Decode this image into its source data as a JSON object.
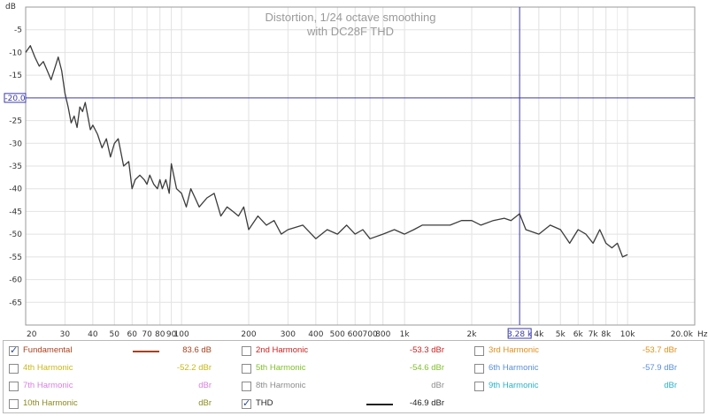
{
  "chart_data": {
    "type": "line",
    "title": "Distortion, 1/24 octave smoothing",
    "subtitle": "with DC28F THD",
    "ylabel": "dB",
    "xunit": "Hz",
    "xscale": "log",
    "xlim": [
      20,
      20000
    ],
    "ylim": [
      -70,
      0
    ],
    "grid": true,
    "x_ticks": [
      {
        "v": 20,
        "label": "20"
      },
      {
        "v": 30,
        "label": "30"
      },
      {
        "v": 40,
        "label": "40"
      },
      {
        "v": 50,
        "label": "50"
      },
      {
        "v": 60,
        "label": "60"
      },
      {
        "v": 70,
        "label": "70"
      },
      {
        "v": 80,
        "label": "80"
      },
      {
        "v": 90,
        "label": "90"
      },
      {
        "v": 100,
        "label": "100"
      },
      {
        "v": 200,
        "label": "200"
      },
      {
        "v": 300,
        "label": "300"
      },
      {
        "v": 400,
        "label": "400"
      },
      {
        "v": 500,
        "label": "500"
      },
      {
        "v": 600,
        "label": "600"
      },
      {
        "v": 700,
        "label": "700"
      },
      {
        "v": 800,
        "label": "800"
      },
      {
        "v": 1000,
        "label": "1k"
      },
      {
        "v": 2000,
        "label": "2k"
      },
      {
        "v": 4000,
        "label": "4k"
      },
      {
        "v": 5000,
        "label": "5k"
      },
      {
        "v": 6000,
        "label": "6k"
      },
      {
        "v": 7000,
        "label": "7k"
      },
      {
        "v": 8000,
        "label": "8k"
      },
      {
        "v": 10000,
        "label": "10k"
      },
      {
        "v": 20000,
        "label": "20.0k"
      }
    ],
    "x_minor": [
      9000,
      3000
    ],
    "y_ticks": [
      {
        "v": -5,
        "label": "-5"
      },
      {
        "v": -10,
        "label": "-10"
      },
      {
        "v": -15,
        "label": "-15"
      },
      {
        "v": -25,
        "label": "-25"
      },
      {
        "v": -30,
        "label": "-30"
      },
      {
        "v": -35,
        "label": "-35"
      },
      {
        "v": -40,
        "label": "-40"
      },
      {
        "v": -45,
        "label": "-45"
      },
      {
        "v": -50,
        "label": "-50"
      },
      {
        "v": -55,
        "label": "-55"
      },
      {
        "v": -60,
        "label": "-60"
      },
      {
        "v": -65,
        "label": "-65"
      }
    ],
    "cursor": {
      "x": 3280,
      "y": -20,
      "x_label": "3.28 k",
      "y_label": "-20.0",
      "color": "#3a3aa8"
    },
    "series": [
      {
        "name": "THD",
        "color": "#3c3c3c",
        "x": [
          20,
          21,
          22,
          23,
          24,
          25,
          26,
          27,
          28,
          29,
          30,
          31,
          32,
          33,
          34,
          35,
          36,
          37,
          38,
          39,
          40,
          42,
          44,
          46,
          48,
          50,
          52,
          55,
          58,
          60,
          62,
          65,
          68,
          70,
          72,
          75,
          78,
          80,
          82,
          85,
          88,
          90,
          95,
          100,
          105,
          110,
          115,
          120,
          130,
          140,
          150,
          160,
          170,
          180,
          190,
          200,
          220,
          240,
          260,
          280,
          300,
          350,
          400,
          450,
          500,
          550,
          600,
          650,
          700,
          800,
          900,
          1000,
          1100,
          1200,
          1400,
          1600,
          1800,
          2000,
          2200,
          2500,
          2800,
          3000,
          3280,
          3500,
          4000,
          4500,
          5000,
          5500,
          6000,
          6500,
          7000,
          7500,
          8000,
          8500,
          9000,
          9500,
          10000
        ],
        "y": [
          -10,
          -8.5,
          -11,
          -13,
          -12,
          -14,
          -16,
          -13.5,
          -11,
          -14,
          -19,
          -22,
          -25.5,
          -24,
          -26.5,
          -22,
          -23,
          -21,
          -24,
          -27,
          -26,
          -28,
          -31,
          -29,
          -33,
          -30,
          -29,
          -35,
          -34,
          -40,
          -38,
          -37,
          -38,
          -39,
          -37,
          -39,
          -40,
          -38,
          -40,
          -38,
          -41,
          -34.5,
          -40,
          -41,
          -44,
          -40,
          -42,
          -44,
          -42,
          -41,
          -46,
          -44,
          -45,
          -46,
          -44,
          -49,
          -46,
          -48,
          -47,
          -50,
          -49,
          -48,
          -51,
          -49,
          -50,
          -48,
          -50,
          -49,
          -51,
          -50,
          -49,
          -50,
          -49,
          -48,
          -48,
          -48,
          -47,
          -47,
          -48,
          -47,
          -46.5,
          -47,
          -45.5,
          -49,
          -50,
          -48,
          -49,
          -52,
          -49,
          -50,
          -52,
          -49,
          -52,
          -53,
          -52,
          -55,
          -54.5
        ]
      }
    ]
  },
  "legend": {
    "rows": [
      [
        {
          "label": "Fundamental",
          "value": "83.6 dB",
          "checked": true,
          "color": "#a8401e",
          "swatch": true
        },
        {
          "label": "2nd Harmonic",
          "value": "-53.3 dBr",
          "checked": false,
          "color": "#cc1f1f",
          "swatch": false
        },
        {
          "label": "3rd Harmonic",
          "value": "-53.7 dBr",
          "checked": false,
          "color": "#e0901c",
          "swatch": false
        }
      ],
      [
        {
          "label": "4th Harmonic",
          "value": "-52.2 dBr",
          "checked": false,
          "color": "#c8b81a",
          "swatch": false
        },
        {
          "label": "5th Harmonic",
          "value": "-54.6 dBr",
          "checked": false,
          "color": "#7fbf2a",
          "swatch": false
        },
        {
          "label": "6th Harmonic",
          "value": "-57.9 dBr",
          "checked": false,
          "color": "#5b8fd6",
          "swatch": false
        }
      ],
      [
        {
          "label": "7th Harmonic",
          "value": "dBr",
          "checked": false,
          "color": "#d880e0",
          "swatch": false
        },
        {
          "label": "8th Harmonic",
          "value": "dBr",
          "checked": false,
          "color": "#8c8c8c",
          "swatch": false
        },
        {
          "label": "9th Harmonic",
          "value": "dBr",
          "checked": false,
          "color": "#2ab0c8",
          "swatch": false
        }
      ],
      [
        {
          "label": "10th Harmonic",
          "value": "dBr",
          "checked": false,
          "color": "#8a8a1e",
          "swatch": false
        },
        {
          "label": "THD",
          "value": "-46.9 dBr",
          "checked": true,
          "color": "#222222",
          "swatch": true
        }
      ]
    ]
  }
}
